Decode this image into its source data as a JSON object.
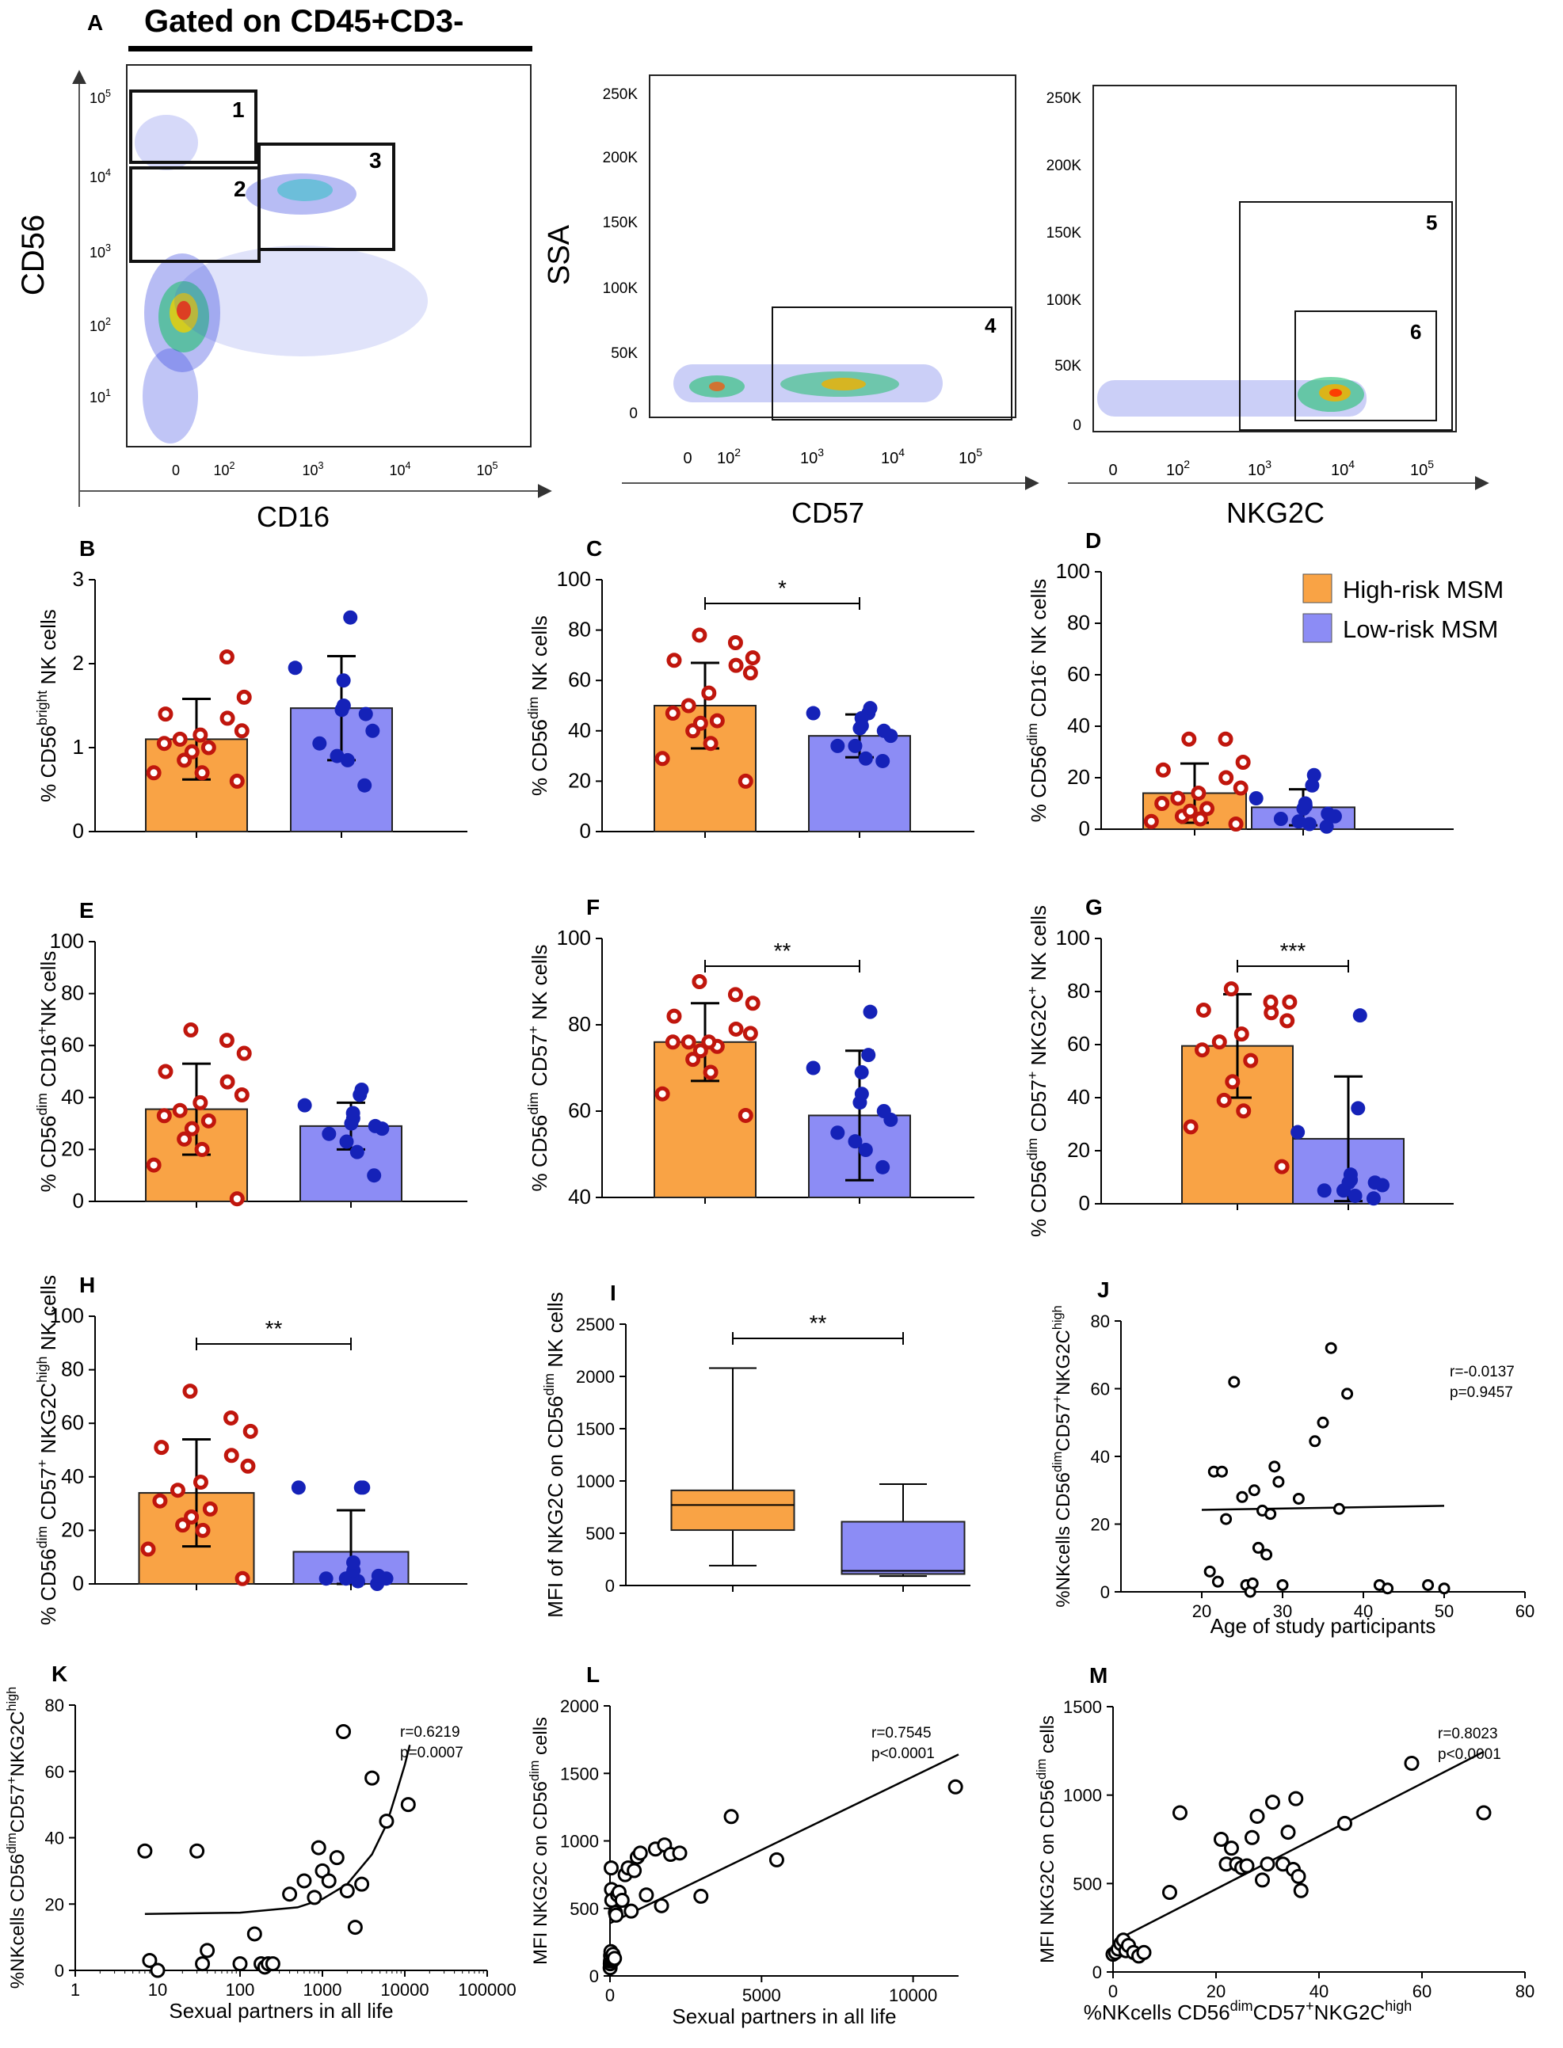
{
  "colors": {
    "high": "#F9A345",
    "low": "#8C8CF5",
    "high_dot": "#C0160D",
    "low_dot": "#1522B8",
    "axis": "#000000"
  },
  "legend": {
    "high": "High-risk MSM",
    "low": "Low-risk MSM"
  },
  "flow": {
    "a_label": "A",
    "gate_title": "Gated on CD45+CD3-",
    "p1": {
      "ylabel": "CD56",
      "xlabel": "CD16",
      "yticks": [
        "10",
        "10",
        "10",
        "10",
        "10"
      ],
      "ytick_exp": [
        "5",
        "4",
        "3",
        "2",
        "1"
      ],
      "xticks": [
        "0",
        "10",
        "10",
        "10",
        "10"
      ],
      "xtick_exp": [
        "",
        "2",
        "3",
        "4",
        "5"
      ],
      "gates": [
        "1",
        "2",
        "3"
      ]
    },
    "p2": {
      "ylabel": "SSA",
      "xlabel": "CD57",
      "yticks": [
        "250K",
        "200K",
        "150K",
        "100K",
        "50K",
        "0"
      ],
      "xticks": [
        "0",
        "10",
        "10",
        "10",
        "10"
      ],
      "xtick_exp": [
        "",
        "2",
        "3",
        "4",
        "5"
      ],
      "gates": [
        "4"
      ]
    },
    "p3": {
      "xlabel": "NKG2C",
      "yticks": [
        "250K",
        "200K",
        "150K",
        "100K",
        "50K",
        "0"
      ],
      "xticks": [
        "0",
        "10",
        "10",
        "10",
        "10"
      ],
      "xtick_exp": [
        "",
        "2",
        "3",
        "4",
        "5"
      ],
      "gates": [
        "5",
        "6"
      ]
    }
  },
  "chart_data": [
    {
      "id": "B",
      "type": "bar",
      "title": "B",
      "ylabel_parts": [
        "% CD56",
        "bright",
        " NK cells"
      ],
      "ylim": [
        0,
        3
      ],
      "yticks": [
        0,
        1,
        2,
        3
      ],
      "means": [
        1.1,
        1.47
      ],
      "errors": [
        0.48,
        0.62
      ],
      "sig": "",
      "high_points": [
        0.6,
        0.7,
        0.7,
        0.85,
        0.95,
        1.0,
        1.05,
        1.1,
        1.15,
        1.2,
        1.35,
        1.4,
        1.6,
        2.08
      ],
      "low_points": [
        0.55,
        0.85,
        0.9,
        1.05,
        1.2,
        1.4,
        1.45,
        1.5,
        1.8,
        1.95,
        2.55
      ]
    },
    {
      "id": "C",
      "type": "bar",
      "title": "C",
      "ylabel_parts": [
        "% CD56",
        "dim",
        " NK cells"
      ],
      "ylim": [
        0,
        100
      ],
      "yticks": [
        0,
        20,
        40,
        60,
        80,
        100
      ],
      "means": [
        50,
        38
      ],
      "errors": [
        17,
        8.5
      ],
      "sig": "*",
      "high_points": [
        20,
        29,
        35,
        40,
        43,
        44,
        47,
        50,
        55,
        63,
        66,
        68,
        69,
        75,
        78
      ],
      "low_points": [
        28,
        29,
        34,
        34,
        38,
        40,
        41,
        42,
        45,
        47,
        47,
        49
      ]
    },
    {
      "id": "D",
      "type": "bar",
      "title": "D",
      "ylabel_parts": [
        "% CD56",
        "dim",
        " CD16",
        "-",
        " NK cells"
      ],
      "ylim": [
        0,
        100
      ],
      "yticks": [
        0,
        20,
        40,
        60,
        80,
        100
      ],
      "means": [
        14,
        8.5
      ],
      "errors": [
        11.5,
        7
      ],
      "sig": "",
      "high_points": [
        2,
        3,
        4,
        5,
        7,
        8,
        10,
        12,
        14,
        16,
        20,
        23,
        26,
        35,
        35
      ],
      "low_points": [
        1,
        2,
        3,
        4,
        5,
        6,
        8,
        9,
        10,
        12,
        17,
        21
      ]
    },
    {
      "id": "E",
      "type": "bar",
      "title": "E",
      "ylabel_parts": [
        "% CD56",
        "dim",
        " CD16",
        "+",
        "NK cells"
      ],
      "ylim": [
        0,
        100
      ],
      "yticks": [
        0,
        20,
        40,
        60,
        80,
        100
      ],
      "means": [
        35.5,
        29
      ],
      "errors": [
        17.5,
        9
      ],
      "sig": "",
      "high_points": [
        1,
        14,
        20,
        24,
        28,
        31,
        33,
        35,
        38,
        41,
        46,
        50,
        57,
        62,
        66
      ],
      "low_points": [
        10,
        19,
        23,
        26,
        28,
        29,
        30,
        32,
        34,
        37,
        41,
        43
      ]
    },
    {
      "id": "F",
      "type": "bar",
      "title": "F",
      "ylabel_parts": [
        "% CD56",
        "dim",
        " CD57",
        "+",
        " NK cells"
      ],
      "ylim": [
        40,
        100
      ],
      "yticks": [
        40,
        60,
        80,
        100
      ],
      "means": [
        76,
        59
      ],
      "errors": [
        9,
        15
      ],
      "sig": "**",
      "high_points": [
        59,
        64,
        69,
        72,
        74,
        75,
        76,
        76,
        76,
        78,
        79,
        82,
        85,
        87,
        90
      ],
      "low_points": [
        47,
        51,
        53,
        55,
        58,
        60,
        62,
        64,
        69,
        70,
        73,
        83
      ]
    },
    {
      "id": "G",
      "type": "bar",
      "title": "G",
      "ylabel_parts": [
        "% CD56",
        "dim",
        " CD57",
        "+",
        " NKG2C",
        "+",
        " NK cells"
      ],
      "ylim": [
        0,
        100
      ],
      "yticks": [
        0,
        20,
        40,
        60,
        80,
        100
      ],
      "means": [
        59.5,
        24.5
      ],
      "errors": [
        19.5,
        23.5
      ],
      "sig": "***",
      "high_points": [
        14,
        29,
        35,
        39,
        46,
        54,
        58,
        61,
        64,
        69,
        72,
        73,
        76,
        76,
        81
      ],
      "low_points": [
        2,
        3,
        5,
        5,
        7,
        8,
        8,
        9,
        11,
        27,
        36,
        71
      ]
    },
    {
      "id": "H",
      "type": "bar",
      "title": "H",
      "ylabel_parts": [
        "% CD56",
        "dim",
        " CD57",
        "+",
        " NKG2C",
        "high",
        " NK cells"
      ],
      "ylim": [
        0,
        100
      ],
      "yticks": [
        0,
        20,
        40,
        60,
        80,
        100
      ],
      "means": [
        34,
        12
      ],
      "errors": [
        20,
        15.5
      ],
      "sig": "**",
      "high_points": [
        2,
        13,
        20,
        22,
        25,
        28,
        31,
        35,
        38,
        44,
        48,
        51,
        57,
        62,
        72
      ],
      "low_points": [
        0,
        1,
        2,
        2,
        2,
        3,
        3,
        5,
        8,
        36,
        36,
        36
      ]
    },
    {
      "id": "I",
      "type": "box",
      "title": "I",
      "ylabel_parts": [
        "MFI of NKG2C on CD56",
        "dim",
        " NK cells"
      ],
      "ylim": [
        0,
        2500
      ],
      "yticks": [
        0,
        500,
        1000,
        1500,
        2000,
        2500
      ],
      "sig": "**",
      "boxes": [
        {
          "min": 190,
          "q1": 530,
          "median": 770,
          "q3": 910,
          "max": 2080
        },
        {
          "min": 90,
          "q1": 110,
          "median": 140,
          "q3": 610,
          "max": 970
        }
      ]
    },
    {
      "id": "J",
      "type": "scatter",
      "title": "J",
      "xlabel": "Age of study participants",
      "ylabel_parts": [
        "%NKcells CD56",
        "dim",
        "CD57",
        "+",
        "NKG2C",
        "high"
      ],
      "xlim": [
        10,
        60
      ],
      "ylim": [
        0,
        80
      ],
      "xticks": [
        20,
        30,
        40,
        50,
        60
      ],
      "yticks": [
        0,
        20,
        40,
        60,
        80
      ],
      "stats": [
        "r=-0.0137",
        "p=0.9457"
      ],
      "x": [
        21,
        21.5,
        22,
        22.5,
        23,
        24,
        25,
        25.5,
        26,
        26.3,
        26.5,
        27,
        27.5,
        28,
        28.5,
        29,
        29.5,
        30,
        32,
        34,
        35,
        36,
        37,
        38,
        42,
        43,
        48,
        50
      ],
      "y": [
        6,
        35.5,
        3,
        35.5,
        21.5,
        62,
        28,
        2,
        0,
        2.5,
        30,
        13,
        24,
        11,
        23,
        37,
        32.5,
        2,
        27.5,
        44.5,
        50,
        72,
        24.5,
        58.5,
        2,
        1,
        2,
        1
      ],
      "fit": [
        [
          20,
          24.2
        ],
        [
          50,
          25.4
        ]
      ]
    },
    {
      "id": "K",
      "type": "scatter",
      "title": "K",
      "xlabel": "Sexual partners in all life",
      "ylabel_parts": [
        "%NKcells CD56",
        "dim",
        "CD57",
        "+",
        "NKG2C",
        "high"
      ],
      "xscale": "log",
      "xlim": [
        1,
        100000
      ],
      "ylim": [
        0,
        80
      ],
      "xticks": [
        1,
        10,
        100,
        1000,
        10000,
        100000
      ],
      "xtick_labels": [
        "1",
        "10",
        "100",
        "1000",
        "10000",
        "100000"
      ],
      "yticks": [
        0,
        20,
        40,
        60,
        80
      ],
      "stats": [
        "r=0.6219",
        "p=0.0007"
      ],
      "x": [
        7,
        8,
        10,
        30,
        35,
        40,
        100,
        150,
        180,
        200,
        220,
        250,
        400,
        600,
        800,
        900,
        1000,
        1200,
        1500,
        1800,
        2000,
        2500,
        3000,
        4000,
        6000,
        11000
      ],
      "y": [
        36,
        3,
        0,
        36,
        2,
        6,
        2,
        11,
        2,
        1,
        2,
        2,
        23,
        27,
        22,
        37,
        30,
        27,
        34,
        72,
        24,
        13,
        26,
        58,
        45,
        50
      ],
      "fit": [
        [
          7,
          17
        ],
        [
          100,
          17.4
        ],
        [
          500,
          19
        ],
        [
          1000,
          21.5
        ],
        [
          2000,
          26
        ],
        [
          4000,
          35
        ],
        [
          6000,
          44
        ],
        [
          8000,
          54
        ],
        [
          10000,
          62
        ],
        [
          11500,
          68
        ]
      ]
    },
    {
      "id": "L",
      "type": "scatter",
      "title": "L",
      "xlabel": "Sexual partners in all life",
      "ylabel_parts": [
        "MFI NKG2C on CD56",
        "dim",
        " cells"
      ],
      "xlim": [
        0,
        11500
      ],
      "ylim": [
        0,
        2000
      ],
      "xticks": [
        0,
        5000,
        10000
      ],
      "yticks": [
        0,
        500,
        1000,
        1500,
        2000
      ],
      "stats": [
        "r=0.7545",
        "p<0.0001"
      ],
      "x": [
        5,
        10,
        15,
        20,
        30,
        40,
        50,
        60,
        80,
        100,
        120,
        150,
        180,
        200,
        250,
        300,
        400,
        500,
        600,
        700,
        800,
        900,
        1000,
        1200,
        1500,
        1700,
        1800,
        2000,
        2300,
        3000,
        4000,
        5500,
        11400
      ],
      "y": [
        60,
        90,
        110,
        150,
        180,
        800,
        640,
        560,
        110,
        160,
        120,
        130,
        470,
        450,
        600,
        620,
        560,
        750,
        800,
        480,
        780,
        880,
        910,
        600,
        940,
        520,
        970,
        900,
        910,
        590,
        1180,
        860,
        1400
      ],
      "fit": [
        [
          0,
          390
        ],
        [
          11500,
          1640
        ]
      ]
    },
    {
      "id": "M",
      "type": "scatter",
      "title": "M",
      "xlabel": "%NKcells CD56dimCD57+NKG2Chigh",
      "ylabel_parts": [
        "MFI NKG2C on CD56",
        "dim",
        " cells"
      ],
      "xlim": [
        0,
        80
      ],
      "ylim": [
        0,
        1500
      ],
      "xticks": [
        0,
        20,
        40,
        60,
        80
      ],
      "yticks": [
        0,
        500,
        1000,
        1500
      ],
      "stats": [
        "r=0.8023",
        "p<0.0001"
      ],
      "x": [
        0,
        0.5,
        1,
        1.5,
        2,
        2.5,
        3,
        4,
        5,
        6,
        11,
        13,
        21,
        22,
        23,
        24,
        25,
        26,
        27,
        28,
        29,
        30,
        31,
        33,
        34,
        35,
        35.5,
        36,
        36.5,
        45,
        58,
        72
      ],
      "y": [
        100,
        110,
        130,
        160,
        180,
        120,
        150,
        110,
        90,
        110,
        450,
        900,
        750,
        610,
        700,
        610,
        590,
        600,
        760,
        880,
        520,
        610,
        960,
        610,
        790,
        580,
        980,
        540,
        460,
        840,
        1180,
        900
      ],
      "fit": [
        [
          0,
          170
        ],
        [
          72,
          1245
        ]
      ]
    }
  ]
}
